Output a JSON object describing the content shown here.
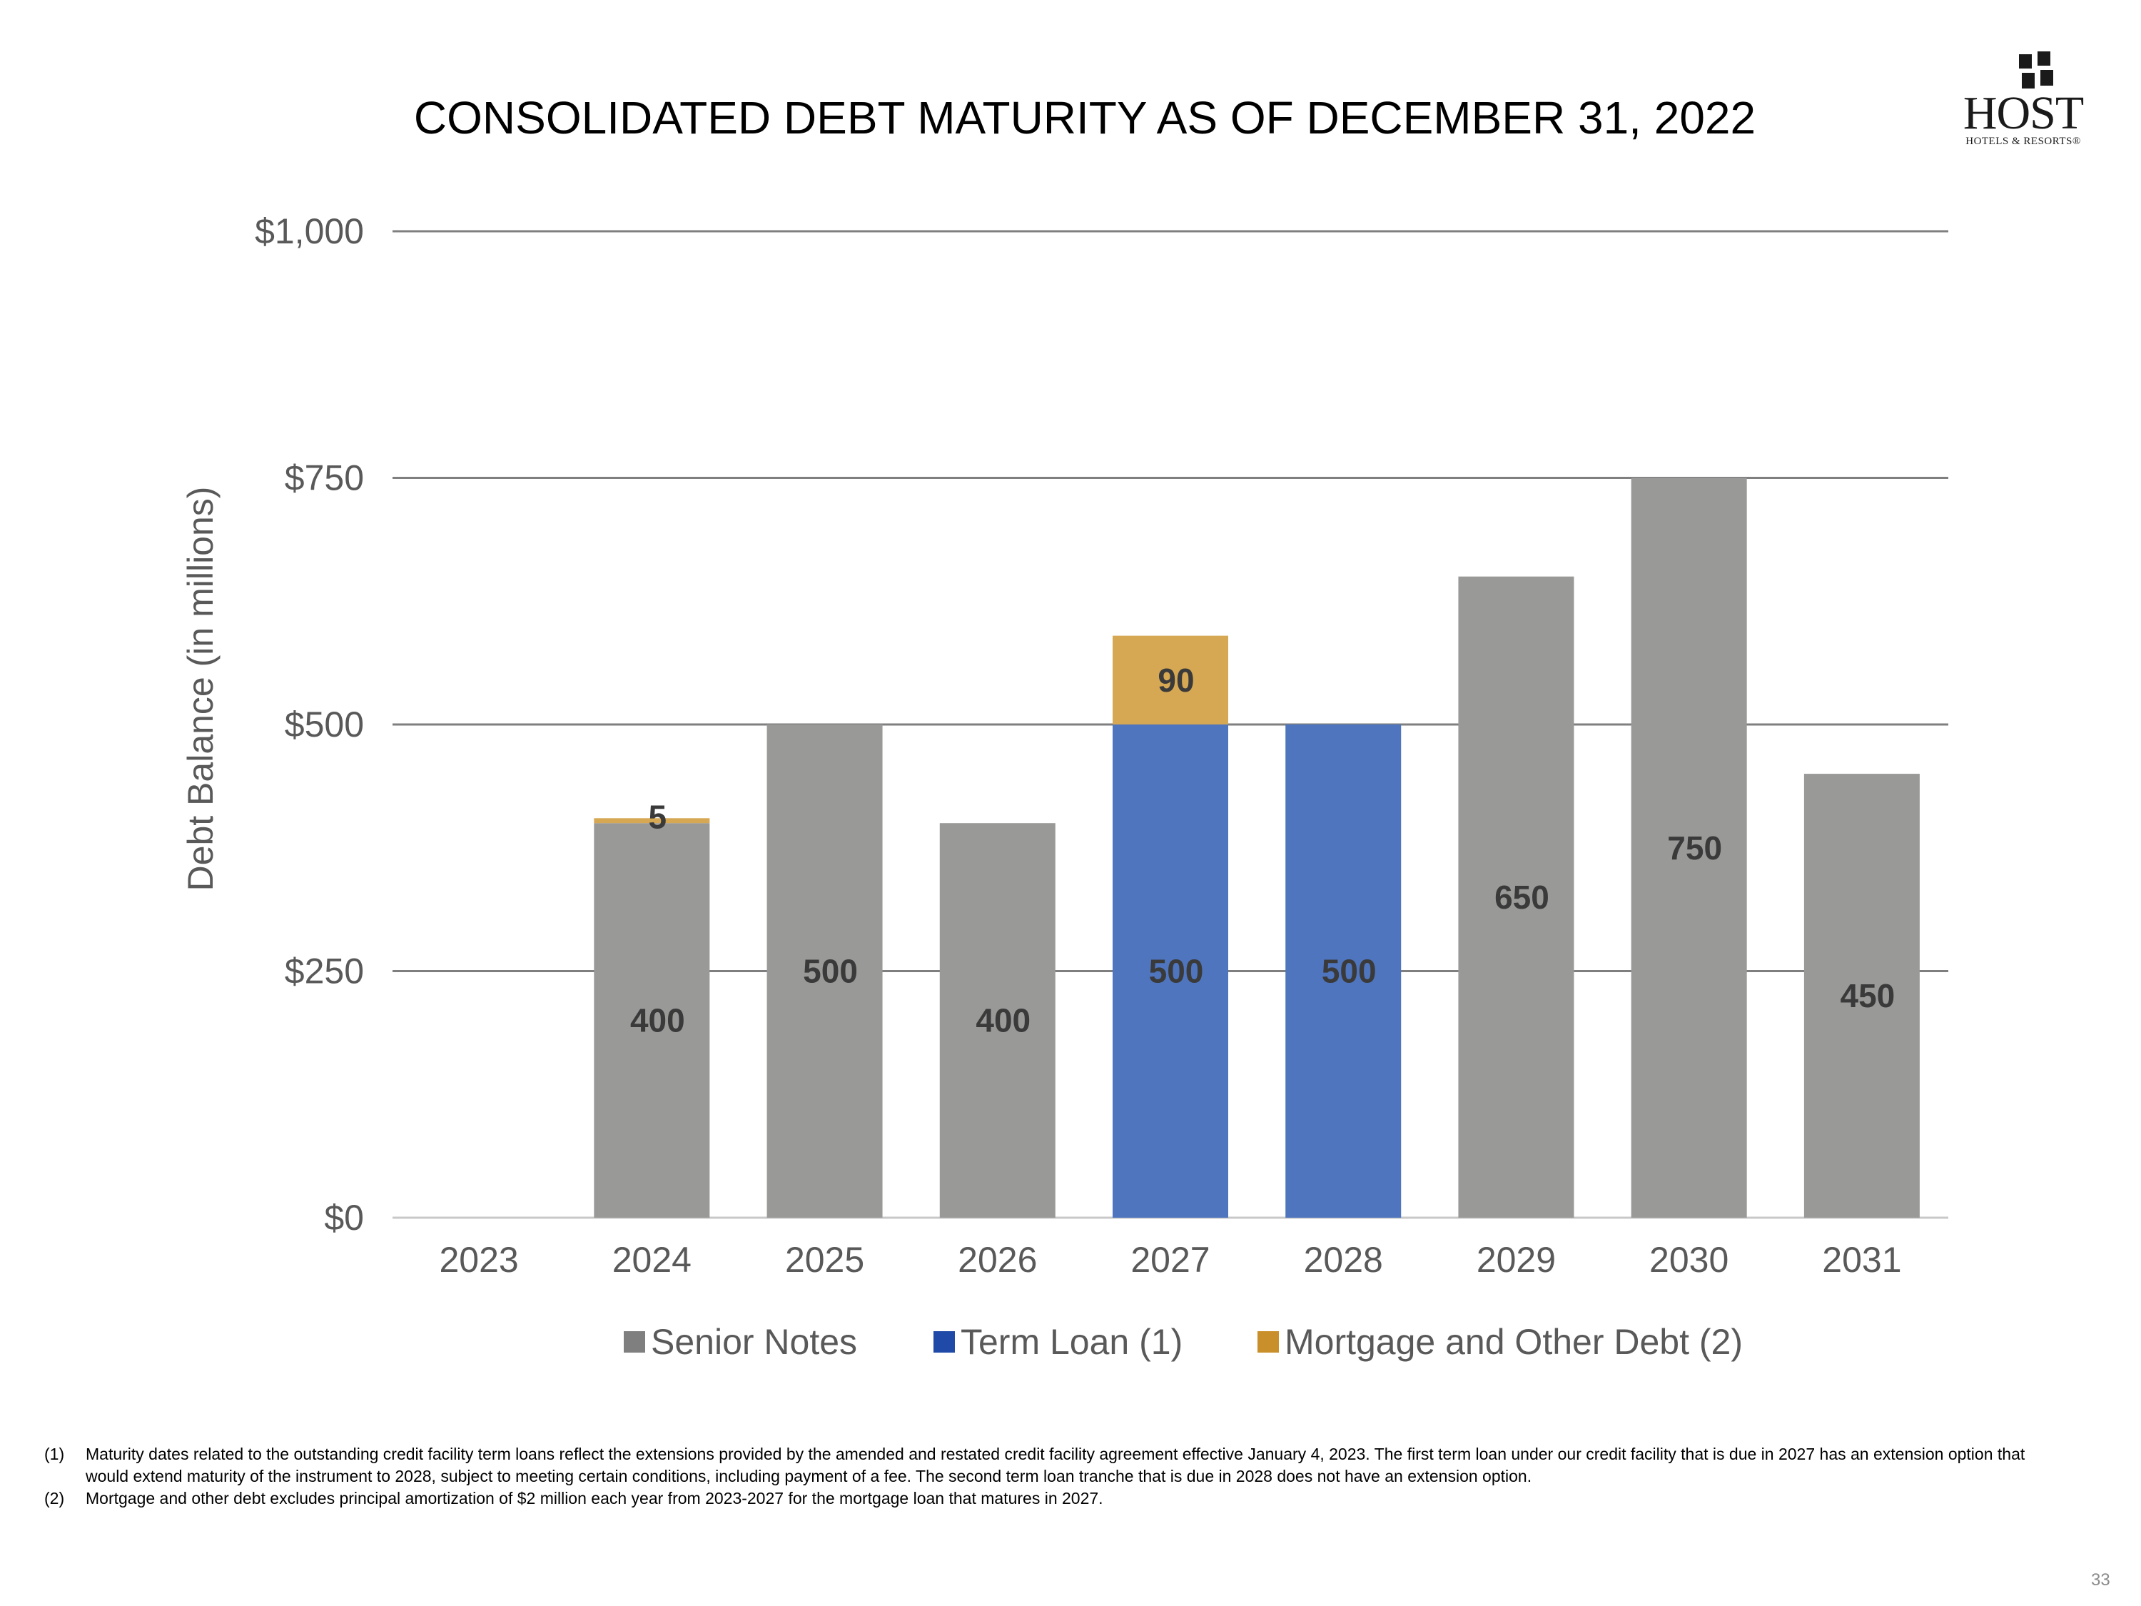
{
  "title": "CONSOLIDATED DEBT MATURITY AS OF DECEMBER 31, 2022",
  "logo": {
    "word": "HOST",
    "sub": "HOTELS & RESORTS",
    "reg": "®"
  },
  "colors": {
    "senior": "#999a98",
    "term": "#4e75be",
    "mortgage": "#d6a853",
    "label_text": "#3a3a3a",
    "grid": "#7f7f7f"
  },
  "chart_data": {
    "type": "bar",
    "stacked": true,
    "categories": [
      "2023",
      "2024",
      "2025",
      "2026",
      "2027",
      "2028",
      "2029",
      "2030",
      "2031"
    ],
    "series": [
      {
        "name": "Senior Notes",
        "key": "senior",
        "values": [
          0,
          400,
          500,
          400,
          0,
          0,
          650,
          750,
          450
        ]
      },
      {
        "name": "Term Loan (1)",
        "key": "term",
        "values": [
          0,
          0,
          0,
          0,
          500,
          500,
          0,
          0,
          0
        ]
      },
      {
        "name": "Mortgage and Other Debt (2)",
        "key": "mortgage",
        "values": [
          0,
          5,
          0,
          0,
          90,
          0,
          0,
          0,
          0
        ]
      }
    ],
    "ylabel": "Debt Balance (in millions)",
    "ylim": [
      0,
      1000
    ],
    "yticks": [
      0,
      250,
      500,
      750,
      1000
    ],
    "ytick_labels": [
      "$0",
      "$250",
      "$500",
      "$750",
      "$1,000"
    ],
    "grid": true,
    "legend": "bottom"
  },
  "footnotes": [
    {
      "num": "(1)",
      "text": "Maturity dates related to the outstanding credit facility term loans reflect the extensions provided by the amended and restated credit facility agreement effective January 4, 2023. The first term loan under our credit facility that is due in 2027 has an extension option that would extend maturity of the instrument to 2028, subject to meeting certain conditions, including payment of a fee. The second term loan tranche that is due in 2028 does not have an extension option."
    },
    {
      "num": "(2)",
      "text": "Mortgage and other debt excludes principal amortization of $2 million each year from 2023-2027 for the mortgage loan that matures in 2027."
    }
  ],
  "page_number": "33"
}
